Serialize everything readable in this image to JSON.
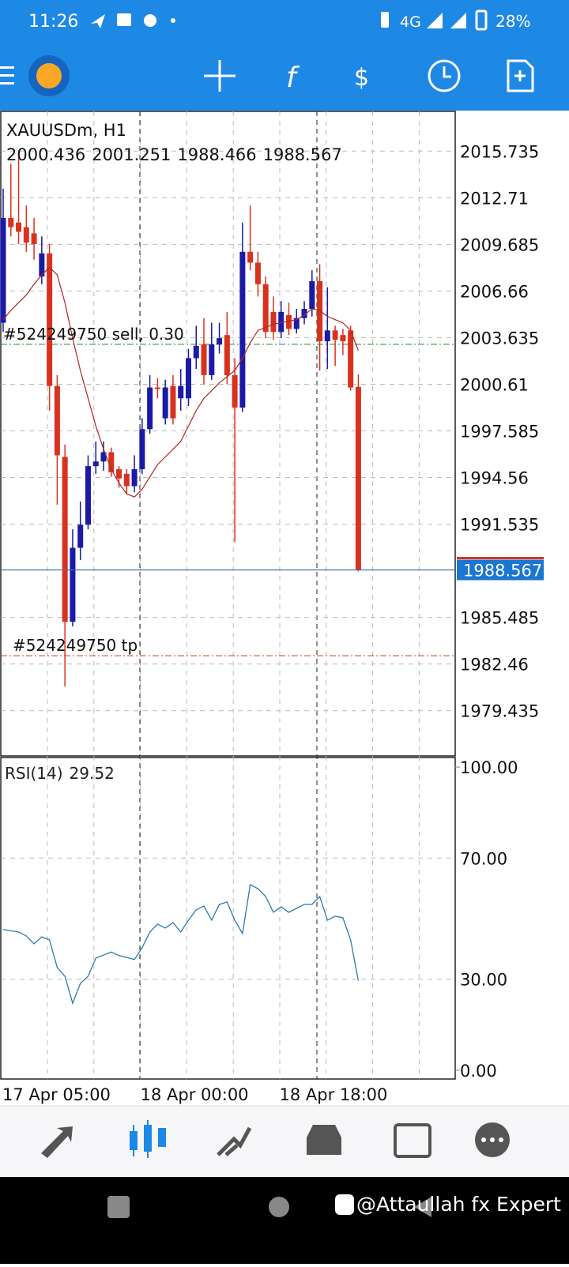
{
  "status_bar": {
    "time": "11:26",
    "network": "4G",
    "battery": "28%"
  },
  "chart_data": [
    {
      "type": "candlestick",
      "title": "XAUUSDm, H1",
      "categories": [
        "17 Apr 05:00",
        null,
        null,
        null,
        null,
        null,
        null,
        null,
        null,
        null,
        null,
        null,
        null,
        null,
        null,
        null,
        null,
        null,
        null,
        "18 Apr 00:00",
        null,
        null,
        null,
        null,
        null,
        null,
        null,
        null,
        null,
        null,
        null,
        null,
        null,
        null,
        null,
        null,
        null,
        "18 Apr 18:00",
        null,
        null,
        null,
        null,
        null,
        null,
        null,
        null,
        null
      ],
      "open": [
        2004.6,
        2011.4,
        2011.1,
        2010.8,
        2010.4,
        2007.6,
        2009.1,
        2000.5,
        1995.9,
        1985.2,
        1990.0,
        1991.5,
        1995.3,
        1995.6,
        1996.2,
        1995.1,
        1994.8,
        1994.0,
        1995.1,
        1997.7,
        2000.4,
        1998.4,
        2000.5,
        1999.7,
        1999.7,
        2002.3,
        2003.2,
        2001.2,
        2003.2,
        2003.8,
        2001.2,
        1999.1,
        2009.2,
        2008.5,
        2007.1,
        2005.3,
        2004.0,
        2005.1,
        2004.2,
        2004.9,
        2005.5,
        2007.3,
        2003.4,
        2004.1,
        2003.8,
        2004.1,
        2000.436
      ],
      "high": [
        2013.3,
        2014.9,
        2015.4,
        2012.2,
        2011.4,
        2010.2,
        2009.7,
        2001.2,
        1996.7,
        1991.2,
        1993.0,
        1996.0,
        1996.9,
        1996.9,
        1996.5,
        1995.3,
        1995.1,
        1996.0,
        1998.4,
        2001.2,
        2001.0,
        2000.9,
        2001.2,
        2001.6,
        2002.9,
        2004.4,
        2004.9,
        2004.6,
        2004.6,
        2005.3,
        2002.3,
        2011.1,
        2012.2,
        2009.2,
        2007.6,
        2006.3,
        2006.0,
        2005.9,
        2005.5,
        2006.0,
        2008.0,
        2008.4,
        2006.9,
        2004.4,
        2004.2,
        2004.4,
        2001.251
      ],
      "low": [
        2004.0,
        2010.2,
        2009.7,
        2009.2,
        2008.7,
        2007.1,
        1998.9,
        1992.8,
        1981.0,
        1984.9,
        1989.2,
        1991.2,
        1994.8,
        1995.0,
        1994.6,
        1993.9,
        1993.5,
        1993.6,
        1994.8,
        1997.4,
        1999.7,
        1998.0,
        1998.0,
        1998.9,
        1999.2,
        2001.6,
        2000.6,
        2000.9,
        2002.6,
        2000.6,
        1990.4,
        1998.8,
        2008.0,
        2006.3,
        2003.6,
        2003.5,
        2003.6,
        2003.8,
        2003.9,
        2004.5,
        2005.0,
        2001.5,
        2001.6,
        2001.8,
        2002.5,
        2000.2,
        1988.466
      ],
      "close": [
        2011.4,
        2010.8,
        2010.5,
        2009.8,
        2009.7,
        2009.1,
        2000.5,
        1996.0,
        1985.2,
        1990.0,
        1991.5,
        1995.3,
        1995.6,
        1996.2,
        1994.9,
        1994.5,
        1994.0,
        1995.1,
        1997.7,
        2000.4,
        2000.3,
        2000.4,
        1998.4,
        2000.5,
        2002.3,
        2003.1,
        2001.2,
        2003.2,
        2003.6,
        2001.2,
        1999.1,
        2009.2,
        2008.5,
        2007.1,
        2004.0,
        2004.0,
        2005.3,
        2004.2,
        2004.9,
        2005.5,
        2007.3,
        2003.4,
        2004.1,
        2003.5,
        2003.4,
        2000.4,
        1988.567
      ],
      "up_color": "#1a1aa6",
      "down_color": "#d8321f",
      "ma_line": {
        "color": "#b3261e",
        "values": [
          2004.8,
          2005.4,
          2005.9,
          2006.4,
          2007.1,
          2007.7,
          2008.2,
          2007.7,
          2005.9,
          2003.6,
          2001.5,
          1999.7,
          1997.9,
          1996.4,
          1995.1,
          1994.2,
          1993.5,
          1993.3,
          1993.8,
          1994.6,
          1995.4,
          1995.9,
          1996.4,
          1996.9,
          1997.9,
          1998.9,
          1999.7,
          2000.2,
          2000.7,
          2001.1,
          2001.5,
          2002.3,
          2003.3,
          2004.1,
          2004.3,
          2004.5,
          2004.6,
          2004.7,
          2004.8,
          2005.1,
          2005.5,
          2005.4,
          2005.0,
          2004.8,
          2004.6,
          2004.1,
          2002.8
        ]
      },
      "orders": [
        {
          "label": "#524249750 sell, 0.30",
          "price": 2003.2,
          "color": "#2e7d32"
        },
        {
          "label": "#524249750 tp",
          "price": 1983.0,
          "color": "#d8321f"
        }
      ],
      "ylim": [
        1976.5,
        2018.31
      ],
      "yticks": [
        2015.735,
        2012.71,
        2009.685,
        2006.66,
        2003.635,
        2000.61,
        1997.585,
        1994.56,
        1991.535,
        1985.485,
        1982.46,
        1979.435
      ],
      "grid": true
    },
    {
      "type": "line",
      "title": "RSI(14)",
      "color": "#2a7ca8",
      "values": [
        46.4,
        46.0,
        45.6,
        44.3,
        41.7,
        44.0,
        43.0,
        33.9,
        31.0,
        22.1,
        28.6,
        31.0,
        37.0,
        38.0,
        39.0,
        37.8,
        37.2,
        36.5,
        40.4,
        45.6,
        48.2,
        46.9,
        48.7,
        45.6,
        49.5,
        52.9,
        54.2,
        49.5,
        54.7,
        55.5,
        49.5,
        45.1,
        61.2,
        59.9,
        57.3,
        52.1,
        53.9,
        52.1,
        53.4,
        54.7,
        54.7,
        57.3,
        49.5,
        50.8,
        50.3,
        43.0,
        29.52
      ],
      "ylim": [
        -2.9,
        102.9
      ],
      "yticks": [
        {
          "value": 100,
          "label": "100.00"
        },
        {
          "value": 70,
          "label": "70.00"
        },
        {
          "value": 30,
          "label": "30.00"
        },
        {
          "value": 0,
          "label": "0.00"
        }
      ],
      "grid": true
    }
  ],
  "watermark": "@Attaullah fx Expert"
}
